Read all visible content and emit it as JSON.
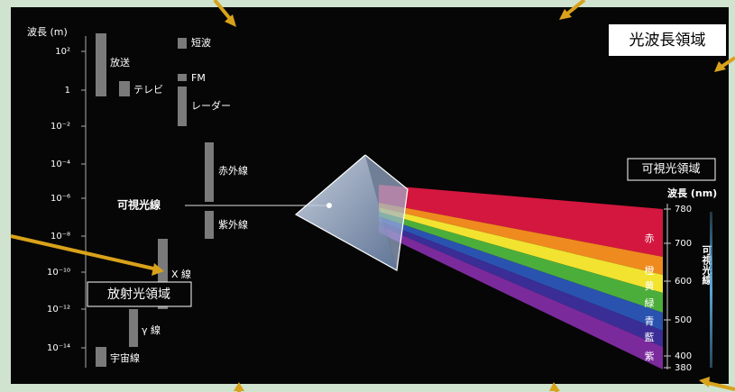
{
  "title": "光波長領域",
  "left_axis": {
    "label": "波長 (m)",
    "ticks": [
      "10²",
      "1",
      "10⁻²",
      "10⁻⁴",
      "10⁻⁶",
      "10⁻⁸",
      "10⁻¹⁰",
      "10⁻¹²",
      "10⁻¹⁴"
    ]
  },
  "bands": [
    {
      "label": "放送"
    },
    {
      "label": "テレビ"
    },
    {
      "label": "短波"
    },
    {
      "label": "FM"
    },
    {
      "label": "レーダー"
    },
    {
      "label": "赤外線"
    },
    {
      "label": "紫外線"
    },
    {
      "label": "X 線"
    },
    {
      "label": "γ 線"
    },
    {
      "label": "宇宙線"
    }
  ],
  "visible_light_label": "可視光線",
  "synchrotron_label": "放射光領域",
  "visible_region": {
    "title": "可視光領域",
    "axis_label": "波長 (nm)",
    "ticks": [
      "780",
      "700",
      "600",
      "500",
      "400",
      "380"
    ],
    "colors": [
      "赤",
      "橙",
      "黄",
      "緑",
      "青",
      "藍",
      "紫"
    ],
    "side_label": "可視光線"
  }
}
